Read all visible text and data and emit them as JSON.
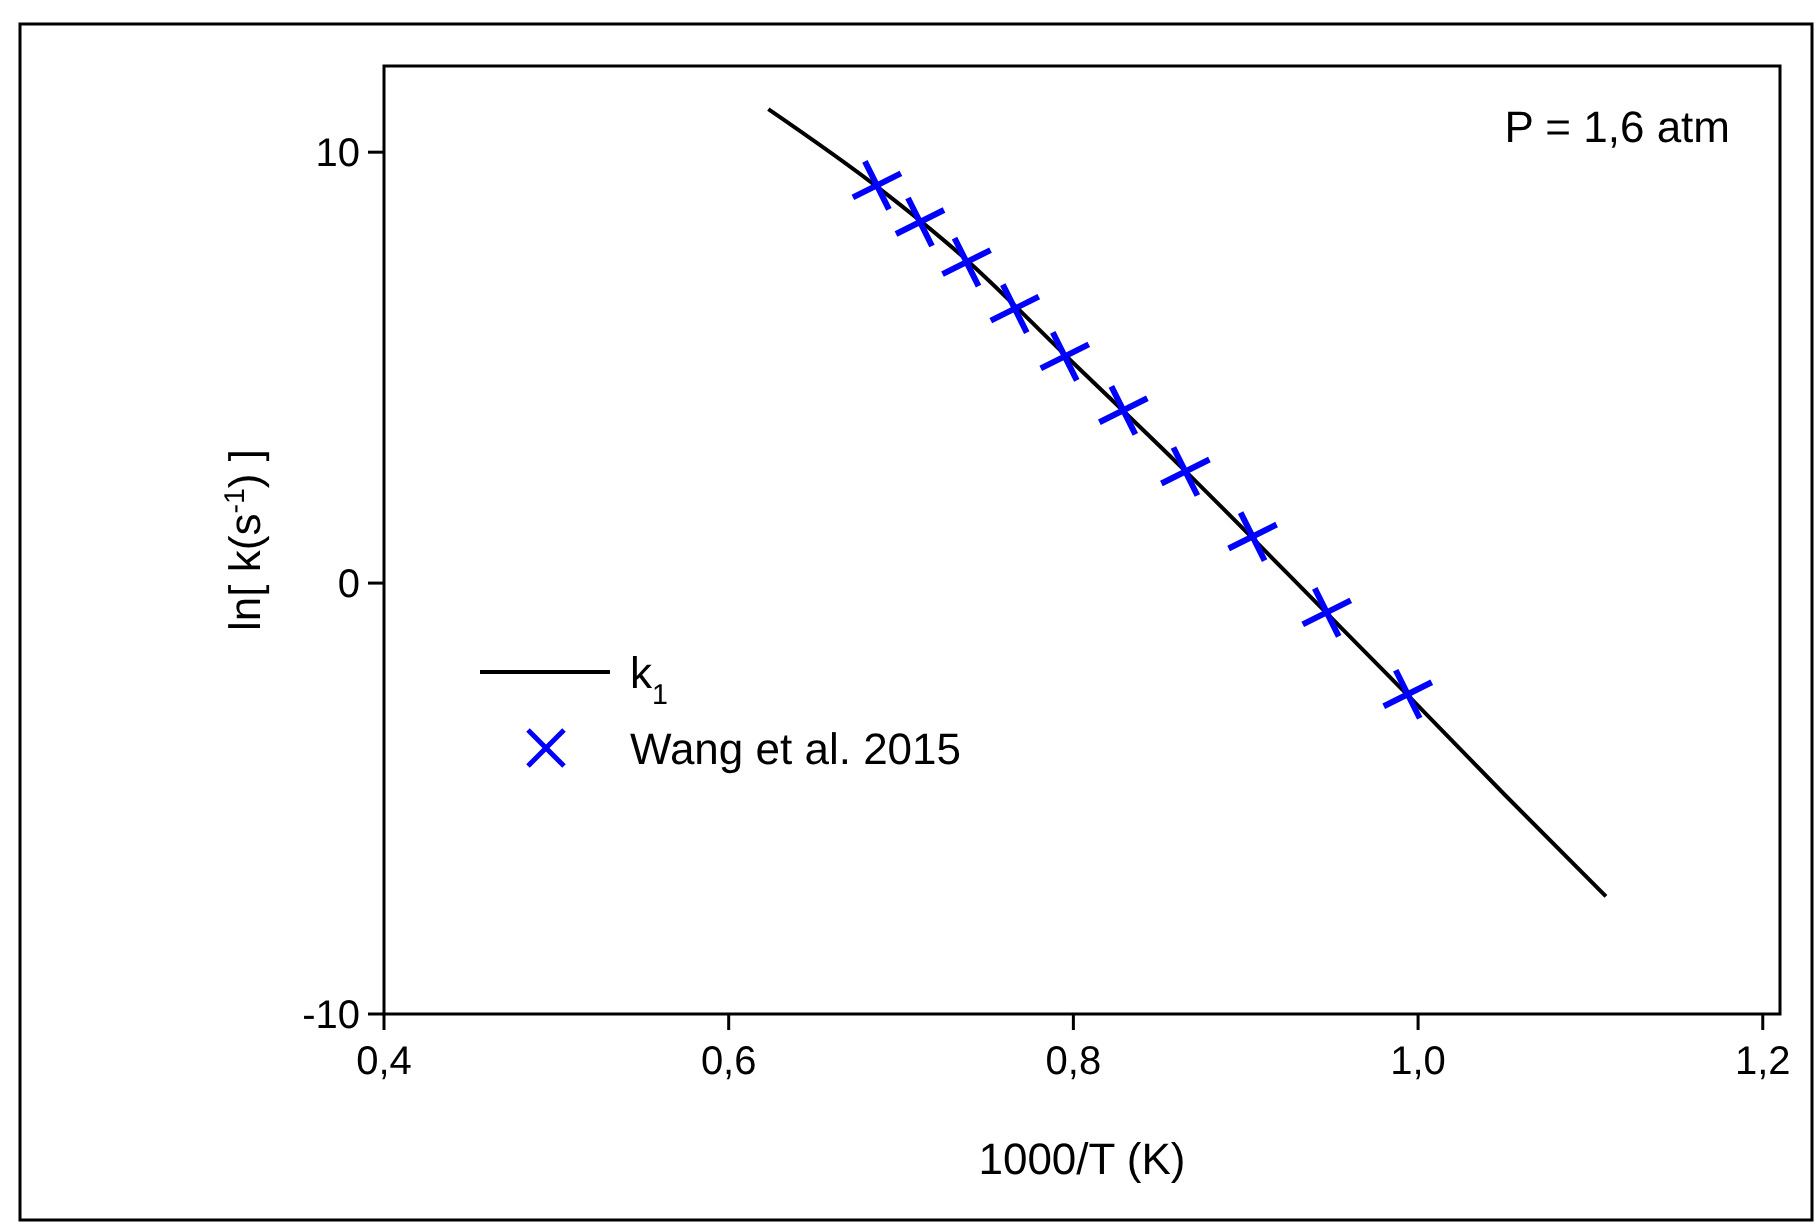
{
  "chart_data": {
    "type": "line",
    "xlabel": "1000/T (K)",
    "ylabel": "ln[ k(s$^{-1}$) ]",
    "xlim": [
      0.4,
      1.21
    ],
    "ylim": [
      -10,
      12
    ],
    "xticks": [
      {
        "value": 0.4,
        "label": "0,4"
      },
      {
        "value": 0.6,
        "label": "0,6"
      },
      {
        "value": 0.8,
        "label": "0,8"
      },
      {
        "value": 1.0,
        "label": "1,0"
      },
      {
        "value": 1.2,
        "label": "1,2"
      }
    ],
    "yticks": [
      -10,
      0,
      10
    ],
    "annotations": [
      "P = 1,6 atm"
    ],
    "legend": "left",
    "grid": false,
    "series": [
      {
        "name": "k$_{1}$",
        "color": "#000000",
        "line_style": "solid",
        "x": [
          0.623,
          0.686,
          0.738,
          0.795,
          0.865,
          0.947,
          0.994,
          1.05,
          1.109
        ],
        "values": [
          11.0,
          9.2,
          7.5,
          5.3,
          2.6,
          -0.7,
          -2.6,
          -4.9,
          -7.27
        ]
      },
      {
        "name": "Wang et al. 2015",
        "type": "scatter",
        "color": "#0000ff",
        "marker": "cross",
        "x": [
          0.686,
          0.711,
          0.738,
          0.766,
          0.795,
          0.829,
          0.865,
          0.904,
          0.947,
          0.994
        ],
        "values": [
          9.23,
          8.38,
          7.45,
          6.37,
          5.26,
          4.01,
          2.59,
          1.08,
          -0.68,
          -2.58
        ]
      }
    ]
  }
}
